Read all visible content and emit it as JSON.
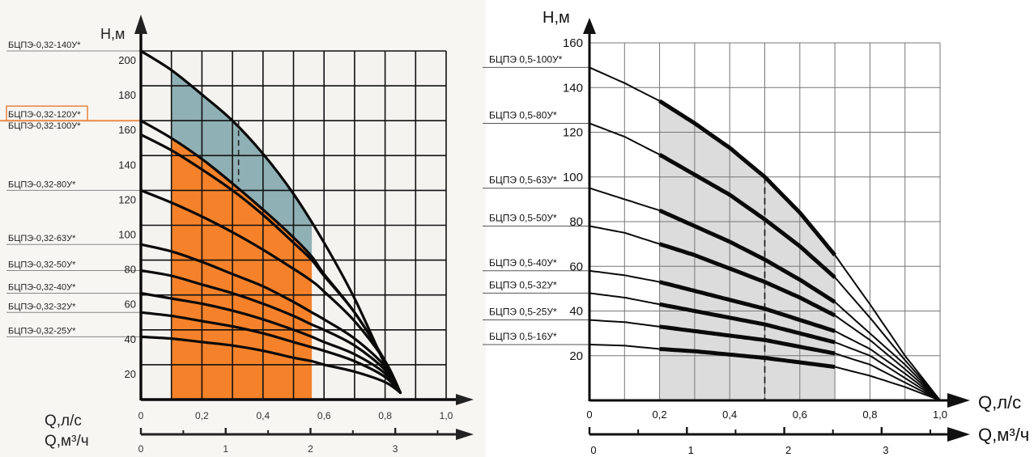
{
  "chart_data": [
    {
      "type": "line",
      "title": "",
      "ylabel": "Н,м",
      "xlabel": "Q,л/с",
      "xlabel2": "Q,м³/ч",
      "xlim": [
        0,
        1.0
      ],
      "ylim": [
        0,
        200
      ],
      "grid": true,
      "x_ticks": [
        "0",
        "0,2",
        "0,4",
        "0,6",
        "0,8",
        "1,0"
      ],
      "x_tick_values": [
        0,
        0.2,
        0.4,
        0.6,
        0.8,
        1.0
      ],
      "y_ticks": [
        "20",
        "40",
        "60",
        "80",
        "100",
        "120",
        "140",
        "160",
        "180",
        "200"
      ],
      "y_tick_values": [
        20,
        40,
        60,
        80,
        100,
        120,
        140,
        160,
        180,
        200
      ],
      "x2_ticks": [
        "0",
        "1",
        "2",
        "3"
      ],
      "x2_tick_values_lps": [
        0,
        0.2778,
        0.5556,
        0.8333
      ],
      "x2_minor_tick_values_lps": [
        0.1389,
        0.4167,
        0.6944,
        0.9722
      ],
      "regions": [
        {
          "name": "blue-region",
          "color": "#8fb0b4",
          "x_range": [
            0.1,
            0.56
          ],
          "between": [
            "БЦПЭ-0,32-140У*",
            "БЦПЭ-0,32-100У*"
          ]
        },
        {
          "name": "orange-region",
          "color": "#f5822a",
          "x_range": [
            0.1,
            0.56
          ],
          "below": "БЦПЭ-0,32-100У*"
        }
      ],
      "dashed_marker": {
        "x": 0.32,
        "y_from": 125,
        "y_to": 160
      },
      "highlight_label": "БЦПЭ-0,32-120У*",
      "highlight_color": "#e98a4a",
      "series": [
        {
          "name": "БЦПЭ-0,32-140У*",
          "label_y": 200,
          "x": [
            0,
            0.1,
            0.2,
            0.3,
            0.4,
            0.5,
            0.6,
            0.7,
            0.8,
            0.85
          ],
          "y": [
            200,
            189,
            175,
            160,
            141,
            118,
            90,
            58,
            20,
            4
          ]
        },
        {
          "name": "БЦПЭ-0,32-120У*",
          "label_y": 165,
          "x": [],
          "y": []
        },
        {
          "name": "БЦПЭ-0,32-100У*",
          "label_y": 160,
          "x": [
            0,
            0.1,
            0.2,
            0.3,
            0.4,
            0.5,
            0.56,
            0.6,
            0.7,
            0.8,
            0.85
          ],
          "y": [
            160,
            150,
            138,
            124,
            109,
            93,
            82,
            72,
            50,
            22,
            4
          ]
        },
        {
          "name": "БЦПЭ-0,32-80У*",
          "label_y": 120,
          "x": [
            0,
            0.1,
            0.2,
            0.3,
            0.4,
            0.5,
            0.56,
            0.6,
            0.7,
            0.8,
            0.85
          ],
          "y": [
            152,
            143,
            132,
            120,
            106,
            90,
            80,
            71,
            50,
            22,
            4
          ]
        },
        {
          "name": "БЦПЭ-0,32-63У*",
          "label_y": 120,
          "x": [
            0,
            0.1,
            0.2,
            0.3,
            0.4,
            0.5,
            0.56,
            0.6,
            0.7,
            0.8,
            0.85
          ],
          "y": [
            120,
            113,
            105,
            96,
            86,
            75,
            68,
            62,
            45,
            22,
            4
          ]
        },
        {
          "name": "БЦПЭ-0,32-50У*",
          "label_y": 89,
          "x": [
            0,
            0.1,
            0.2,
            0.3,
            0.4,
            0.5,
            0.56,
            0.6,
            0.7,
            0.8,
            0.85
          ],
          "y": [
            89,
            85,
            79,
            72,
            65,
            56,
            50,
            46,
            35,
            19,
            4
          ]
        },
        {
          "name": "БЦПЭ-0,32-40У*",
          "label_y": 74,
          "x": [
            0,
            0.1,
            0.2,
            0.3,
            0.4,
            0.5,
            0.56,
            0.6,
            0.7,
            0.8,
            0.85
          ],
          "y": [
            74,
            71,
            66,
            61,
            55,
            48,
            43,
            40,
            31,
            17,
            4
          ]
        },
        {
          "name": "БЦПЭ-0,32-32У*",
          "label_y": 61,
          "x": [
            0,
            0.1,
            0.2,
            0.3,
            0.4,
            0.5,
            0.56,
            0.6,
            0.7,
            0.8,
            0.85
          ],
          "y": [
            61,
            58,
            55,
            51,
            46,
            40,
            36,
            33,
            26,
            15,
            4
          ]
        },
        {
          "name": "БЦПЭ-0,32-25У*",
          "label_y": 50,
          "x": [
            0,
            0.1,
            0.2,
            0.3,
            0.4,
            0.5,
            0.56,
            0.6,
            0.7,
            0.8,
            0.85
          ],
          "y": [
            50,
            48,
            45,
            42,
            38,
            33,
            30,
            28,
            22,
            13,
            4
          ]
        },
        {
          "name": "",
          "label_y": null,
          "x": [
            0,
            0.1,
            0.2,
            0.3,
            0.4,
            0.5,
            0.56,
            0.6,
            0.7,
            0.8,
            0.85
          ],
          "y": [
            36,
            35,
            33,
            31,
            28,
            24,
            22,
            20,
            16,
            10,
            4
          ]
        }
      ],
      "label_lines": [
        {
          "text": "БЦПЭ-0,32-140У*",
          "y": 200
        },
        {
          "text": "БЦПЭ-0,32-120У*",
          "y": 160,
          "highlight": true
        },
        {
          "text": "БЦПЭ-0,32-100У*",
          "y": 160
        },
        {
          "text": "БЦПЭ-0,32-80У*",
          "y": 120
        },
        {
          "text": "БЦПЭ-0,32-63У*",
          "y": 89
        },
        {
          "text": "БЦПЭ-0,32-50У*",
          "y": 74
        },
        {
          "text": "БЦПЭ-0,32-40У*",
          "y": 61
        },
        {
          "text": "БЦПЭ-0,32-32У*",
          "y": 50
        },
        {
          "text": "БЦПЭ-0,32-25У*",
          "y": 36
        }
      ]
    },
    {
      "type": "line",
      "title": "",
      "ylabel": "Н,м",
      "xlabel": "Q,л/с",
      "xlabel2": "Q,м³/ч",
      "xlim": [
        0,
        1.0
      ],
      "ylim": [
        0,
        160
      ],
      "grid": true,
      "x_ticks": [
        "0",
        "0,2",
        "0,4",
        "0,6",
        "0,8",
        "1,0"
      ],
      "x_tick_values": [
        0,
        0.2,
        0.4,
        0.6,
        0.8,
        1.0
      ],
      "y_ticks": [
        "20",
        "40",
        "60",
        "80",
        "100",
        "120",
        "140",
        "160"
      ],
      "y_tick_values": [
        20,
        40,
        60,
        80,
        100,
        120,
        140,
        160
      ],
      "x2_ticks": [
        "0",
        "1",
        "2",
        "3"
      ],
      "x2_tick_values_lps": [
        0,
        0.2778,
        0.5556,
        0.8333
      ],
      "x2_minor_tick_values_lps": [
        0.1389,
        0.4167,
        0.6944,
        0.9722
      ],
      "regions": [
        {
          "name": "gray-region",
          "color": "#dcdcdc",
          "x_range": [
            0.2,
            0.7
          ],
          "below": "БЦПЭ 0,5-100У*"
        }
      ],
      "dashed_marker": {
        "x": 0.5,
        "y_from": 0,
        "y_to": 100
      },
      "working_range": [
        0.2,
        0.7
      ],
      "series": [
        {
          "name": "БЦПЭ 0,5-100У*",
          "x": [
            0,
            0.1,
            0.2,
            0.3,
            0.4,
            0.5,
            0.6,
            0.7,
            0.8,
            0.9,
            1.0
          ],
          "y": [
            149,
            142,
            134,
            124,
            113,
            100,
            84,
            65,
            43,
            20,
            0
          ]
        },
        {
          "name": "БЦПЭ 0,5-80У*",
          "x": [
            0,
            0.1,
            0.2,
            0.3,
            0.4,
            0.5,
            0.6,
            0.7,
            0.8,
            0.9,
            1.0
          ],
          "y": [
            124,
            118,
            110,
            101,
            92,
            81,
            69,
            55,
            37,
            18,
            0
          ]
        },
        {
          "name": "БЦПЭ 0,5-63У*",
          "x": [
            0,
            0.1,
            0.2,
            0.3,
            0.4,
            0.5,
            0.6,
            0.7,
            0.8,
            0.9,
            1.0
          ],
          "y": [
            95,
            90,
            85,
            78,
            71,
            63,
            54,
            44,
            30,
            16,
            0
          ]
        },
        {
          "name": "БЦПЭ 0,5-50У*",
          "x": [
            0,
            0.1,
            0.2,
            0.3,
            0.4,
            0.5,
            0.6,
            0.7,
            0.8,
            0.9,
            1.0
          ],
          "y": [
            78,
            75,
            70,
            65,
            59,
            53,
            46,
            38,
            27,
            14,
            0
          ]
        },
        {
          "name": "БЦПЭ 0,5-40У*",
          "x": [
            0,
            0.1,
            0.2,
            0.3,
            0.4,
            0.5,
            0.6,
            0.7,
            0.8,
            0.9,
            1.0
          ],
          "y": [
            58,
            56,
            53,
            49,
            45,
            41,
            36,
            31,
            23,
            12,
            0
          ]
        },
        {
          "name": "БЦПЭ 0,5-32У*",
          "x": [
            0,
            0.1,
            0.2,
            0.3,
            0.4,
            0.5,
            0.6,
            0.7,
            0.8,
            0.9,
            1.0
          ],
          "y": [
            48,
            46,
            43,
            40,
            37,
            34,
            30,
            26,
            20,
            10,
            0
          ]
        },
        {
          "name": "БЦПЭ 0,5-25У*",
          "x": [
            0,
            0.1,
            0.2,
            0.3,
            0.4,
            0.5,
            0.6,
            0.7,
            0.8,
            0.9,
            1.0
          ],
          "y": [
            36,
            35,
            33,
            31,
            29,
            27,
            24,
            21,
            16,
            8,
            0
          ]
        },
        {
          "name": "БЦПЭ 0,5-16У*",
          "x": [
            0,
            0.1,
            0.2,
            0.3,
            0.4,
            0.5,
            0.6,
            0.7,
            0.8,
            0.9,
            1.0
          ],
          "y": [
            25,
            24.5,
            23,
            22,
            20.5,
            19,
            17,
            15,
            11,
            6,
            0
          ]
        }
      ]
    }
  ]
}
